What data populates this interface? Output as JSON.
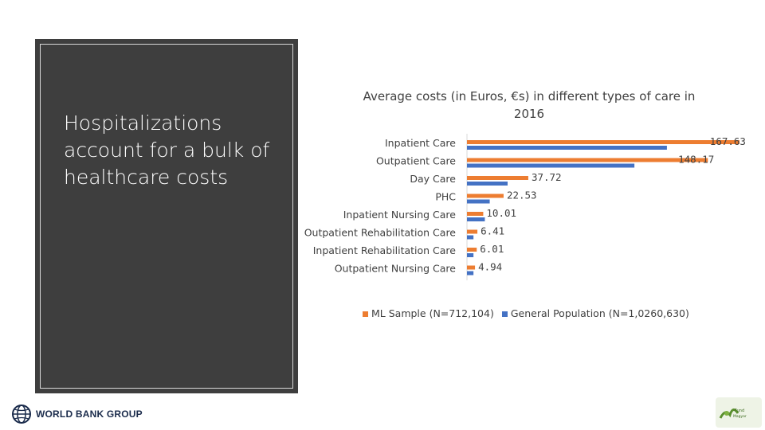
{
  "slide": {
    "headline": "Hospitalizations account for a bulk of healthcare costs"
  },
  "chart_data": {
    "type": "bar",
    "orientation": "horizontal",
    "title": "Average costs (in Euros, €s) in different types of care in 2016",
    "categories": [
      "Inpatient Care",
      "Outpatient Care",
      "Day Care",
      "PHC",
      "Inpatient Nursing Care",
      "Outpatient Rehabilitation Care",
      "Inpatient Rehabilitation Care",
      "Outpatient Nursing Care"
    ],
    "series": [
      {
        "name": "ML Sample (N=712,104)",
        "color": "#ed7d31",
        "values": [
          167.63,
          148.17,
          37.72,
          22.53,
          10.01,
          6.41,
          6.01,
          4.94
        ],
        "labels": [
          "167.63",
          "148.17",
          "37.72",
          "22.53",
          "10.01",
          "6.41",
          "6.01",
          "4.94"
        ]
      },
      {
        "name": "General Population (N=1,0260,630)",
        "color": "#4472c4",
        "values": [
          123,
          103,
          25,
          14,
          11,
          4,
          4,
          4
        ]
      }
    ],
    "xlim": [
      0,
      175
    ],
    "grid": false,
    "legend": "bottom"
  },
  "logos": {
    "world_bank": "WORLD BANK GROUP",
    "partner": "Fund Magyar"
  }
}
